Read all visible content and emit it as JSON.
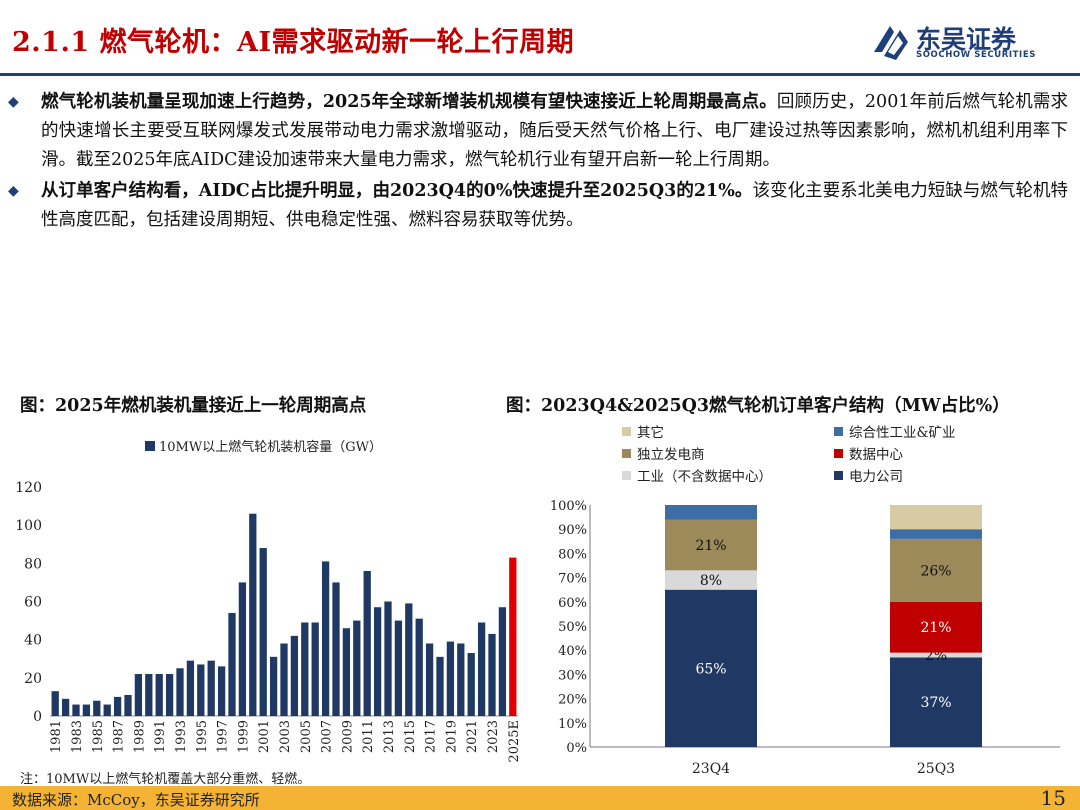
{
  "header": {
    "title": "2.1.1 燃气轮机：AI需求驱动新一轮上行周期",
    "logo_cn": "东吴证券",
    "logo_en": "SOOCHOW SECURITIES",
    "brand_color": "#c00000",
    "accent_color": "#1f3f7a"
  },
  "bullets": [
    {
      "icon": "diamond-bullet-icon",
      "bold": "燃气轮机装机量呈现加速上行趋势，2025年全球新增装机规模有望快速接近上轮周期最高点。",
      "text": "回顾历史，2001年前后燃气轮机需求的快速增长主要受互联网爆发式发展带动电力需求激增驱动，随后受天然气价格上行、电厂建设过热等因素影响，燃机机组利用率下滑。截至2025年底AIDC建设加速带来大量电力需求，燃气轮机行业有望开启新一轮上行周期。"
    },
    {
      "icon": "diamond-bullet-icon",
      "bold": "从订单客户结构看，AIDC占比提升明显，由2023Q4的0%快速提升至2025Q3的21%。",
      "text": "该变化主要系北美电力短缺与燃气轮机特性高度匹配，包括建设周期短、供电稳定性强、燃料容易获取等优势。"
    }
  ],
  "figure_titles": {
    "left": "图：2025年燃机装机量接近上一轮周期高点",
    "right": "图：2023Q4&2025Q3燃气轮机订单客户结构（MW占比%）"
  },
  "footnote": "注：10MW以上燃气轮机覆盖大部分重燃、轻燃。",
  "source": "数据来源：McCoy，东吴证券研究所",
  "page_number": "15",
  "chart_data": [
    {
      "type": "bar",
      "title": "",
      "legend": "10MW以上燃气轮机装机容量（GW）",
      "ylim": [
        0,
        120
      ],
      "yticks": [
        "0",
        "20",
        "40",
        "60",
        "80",
        "100",
        "120"
      ],
      "categories": [
        "1981",
        "1982",
        "1983",
        "1984",
        "1985",
        "1986",
        "1987",
        "1988",
        "1989",
        "1990",
        "1991",
        "1992",
        "1993",
        "1994",
        "1995",
        "1996",
        "1997",
        "1998",
        "1999",
        "2000",
        "2001",
        "2002",
        "2003",
        "2004",
        "2005",
        "2006",
        "2007",
        "2008",
        "2009",
        "2010",
        "2011",
        "2012",
        "2013",
        "2014",
        "2015",
        "2016",
        "2017",
        "2018",
        "2019",
        "2020",
        "2021",
        "2022",
        "2023",
        "2024",
        "2025E"
      ],
      "xtick_labels": [
        "1981",
        "1983",
        "1985",
        "1987",
        "1989",
        "1991",
        "1993",
        "1995",
        "1997",
        "1999",
        "2001",
        "2003",
        "2005",
        "2007",
        "2009",
        "2011",
        "2013",
        "2015",
        "2017",
        "2019",
        "2021",
        "2023",
        "2025E"
      ],
      "values": [
        13,
        9,
        6,
        6,
        8,
        6,
        10,
        11,
        22,
        22,
        22,
        22,
        25,
        29,
        27,
        29,
        26,
        54,
        70,
        106,
        88,
        31,
        38,
        42,
        49,
        49,
        81,
        70,
        46,
        50,
        76,
        57,
        60,
        50,
        59,
        51,
        38,
        31,
        39,
        38,
        33,
        49,
        43,
        57,
        83
      ],
      "color": "#1f3864",
      "highlight_color": "#e00000"
    },
    {
      "type": "bar",
      "stacked": true,
      "title": "",
      "categories": [
        "23Q4",
        "25Q3"
      ],
      "ylim": [
        0,
        100
      ],
      "yticks": [
        "0%",
        "10%",
        "20%",
        "30%",
        "40%",
        "50%",
        "60%",
        "70%",
        "80%",
        "90%",
        "100%"
      ],
      "series": [
        {
          "name": "电力公司",
          "values": [
            65,
            37
          ],
          "labels": [
            "65%",
            "37%"
          ],
          "color": "#1f3864"
        },
        {
          "name": "工业（不含数据中心）",
          "values": [
            8,
            2
          ],
          "labels": [
            "8%",
            "2%"
          ],
          "color": "#d9d9d9"
        },
        {
          "name": "数据中心",
          "values": [
            0,
            21
          ],
          "labels": [
            "",
            "21%"
          ],
          "color": "#c00000"
        },
        {
          "name": "独立发电商",
          "values": [
            21,
            26
          ],
          "labels": [
            "21%",
            "26%"
          ],
          "color": "#9c8a5a"
        },
        {
          "name": "综合性工业&矿业",
          "values": [
            6,
            4
          ],
          "labels": [
            "",
            ""
          ],
          "color": "#3c6da5"
        },
        {
          "name": "其它",
          "values": [
            0,
            10
          ],
          "labels": [
            "",
            ""
          ],
          "color": "#d6cba2"
        }
      ],
      "legend_order": [
        "其它",
        "综合性工业&矿业",
        "独立发电商",
        "数据中心",
        "工业（不含数据中心）",
        "电力公司"
      ]
    }
  ]
}
